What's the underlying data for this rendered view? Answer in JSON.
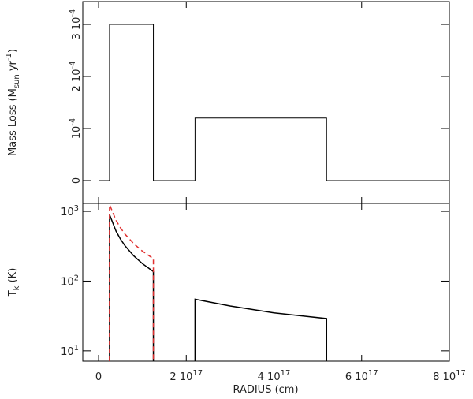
{
  "chart_data": [
    {
      "type": "line",
      "ylabel": [
        "Mass Loss (M",
        "sun",
        " yr",
        "-1",
        ")"
      ],
      "ylim": [
        -4.4e-05,
        0.000344
      ],
      "yticks": [
        0,
        {
          "value": 0.0001,
          "label": [
            "10",
            "-4"
          ]
        },
        {
          "value": 0.0002,
          "label": [
            "2 10",
            "-4"
          ]
        },
        {
          "value": 0.0003,
          "label": [
            "3 10",
            "-4"
          ]
        }
      ],
      "series": [
        {
          "color": "#000000",
          "x": [
            0,
            2.5e+16,
            2.5e+16,
            1.25e+17,
            1.25e+17,
            2.2e+17,
            2.2e+17,
            5.2e+17,
            5.2e+17,
            8e+17
          ],
          "values": [
            0,
            0,
            0.0003,
            0.0003,
            0,
            0,
            0.00012,
            0.00012,
            0,
            0
          ]
        }
      ]
    },
    {
      "type": "line",
      "log_y": true,
      "ylabel": [
        "T",
        "k",
        " (K)"
      ],
      "xlabel": "RADIUS (cm)",
      "xlim": [
        -3.6e+16,
        8e+17
      ],
      "xticks": [
        0,
        {
          "value": 2e+17,
          "label": [
            "2 10",
            "17"
          ]
        },
        {
          "value": 4e+17,
          "label": [
            "4 10",
            "17"
          ]
        },
        {
          "value": 6e+17,
          "label": [
            "6 10",
            "17"
          ]
        },
        {
          "value": 8e+17,
          "label": [
            "8 10",
            "17"
          ]
        }
      ],
      "ylim": [
        7.1,
        1300
      ],
      "yticks": [
        {
          "value": 10,
          "label": [
            "10",
            "1"
          ]
        },
        {
          "value": 100,
          "label": [
            "10",
            "2"
          ]
        },
        {
          "value": 1000,
          "label": [
            "10",
            "3"
          ]
        }
      ],
      "series": [
        {
          "color": "#000000",
          "dash": false,
          "x": [
            2.5e+16,
            4e+16,
            5e+16,
            6e+16,
            8e+16,
            1e+17,
            1.25e+17,
            null,
            2.2e+17,
            3e+17,
            4e+17,
            5.2e+17
          ],
          "values": [
            900,
            519,
            400,
            323,
            231,
            178,
            137,
            null,
            55,
            44,
            35,
            29
          ]
        },
        {
          "color": "#e03030",
          "dash": true,
          "x": [
            2.5e+16,
            4e+16,
            5e+16,
            6e+16,
            8e+16,
            1e+17,
            1.25e+17
          ],
          "values": [
            1250,
            742,
            580,
            474,
            345,
            269,
            210
          ]
        }
      ]
    }
  ]
}
